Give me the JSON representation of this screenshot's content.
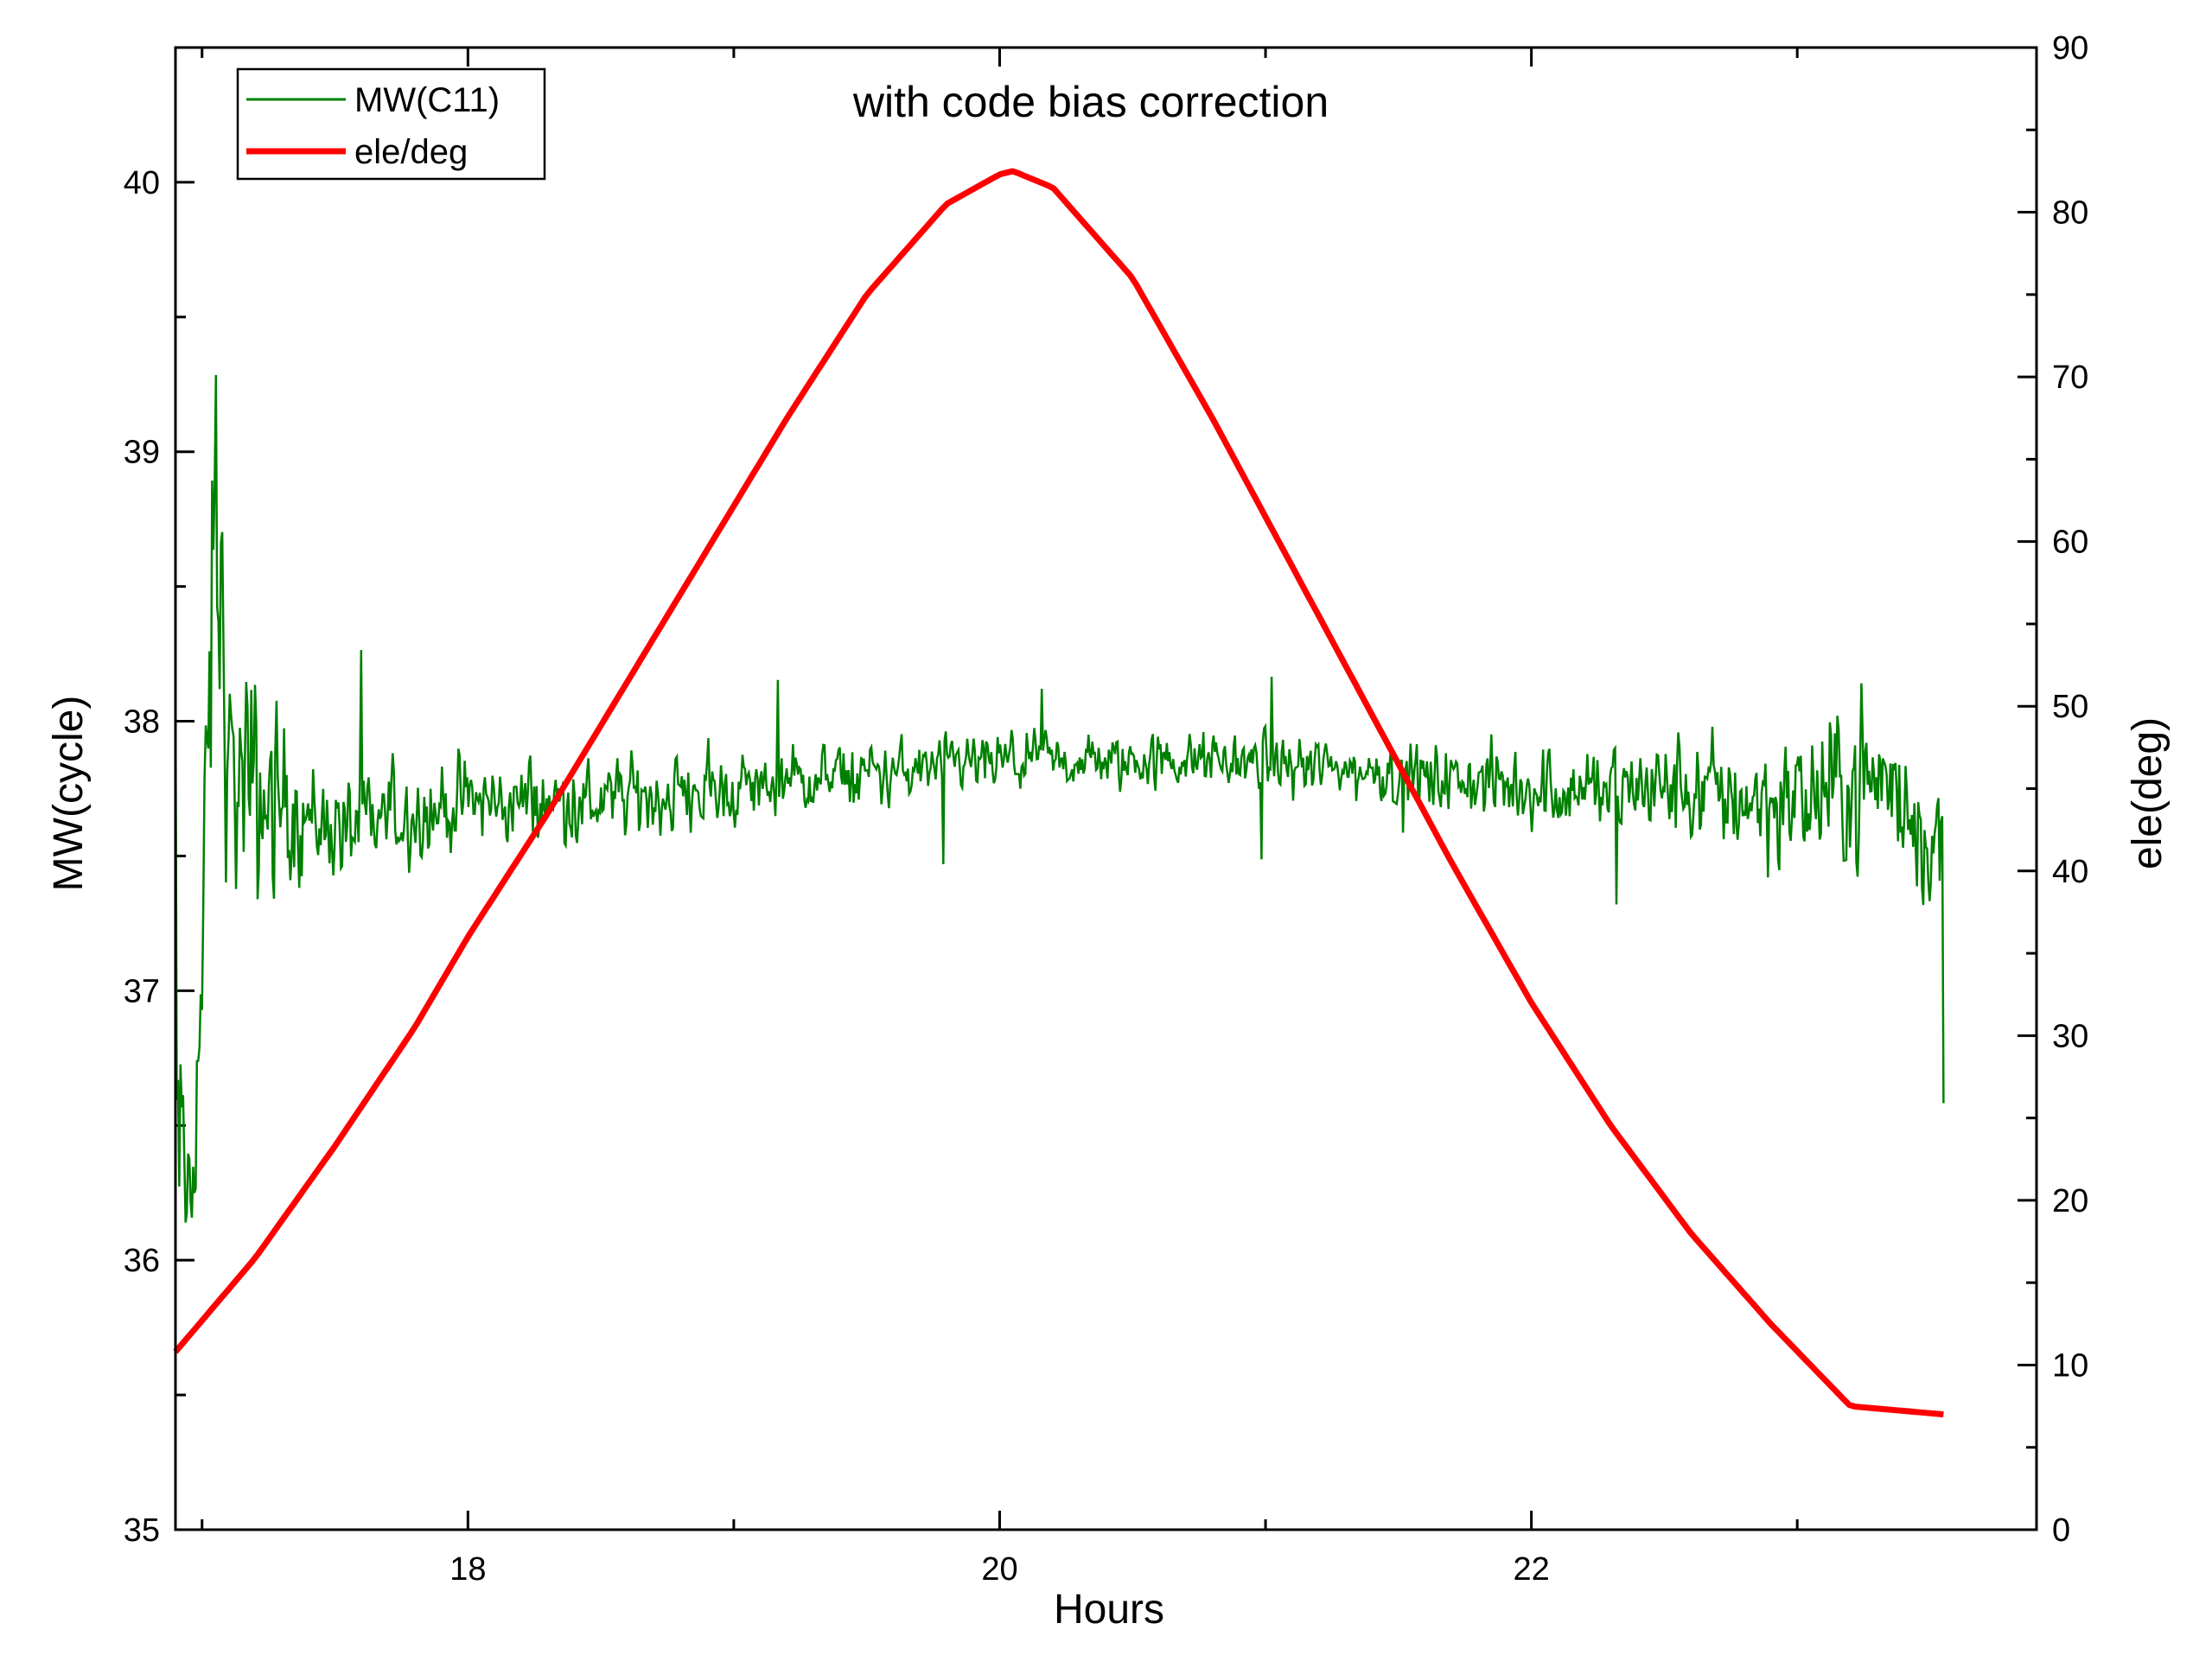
{
  "chart_data": {
    "type": "line",
    "title": "with code bias correction",
    "xlabel": "Hours",
    "ylabel_left": "MW(cycle)",
    "ylabel_right": "ele(deg)",
    "xlim": [
      16.9,
      23.9
    ],
    "ylim_left": [
      35,
      40.5
    ],
    "ylim_right": [
      0,
      90
    ],
    "x_ticks": [
      18,
      20,
      22
    ],
    "x_minor_ticks": [
      17,
      19,
      21,
      23
    ],
    "y_left_ticks": [
      35,
      36,
      37,
      38,
      39,
      40
    ],
    "y_right_ticks": [
      0,
      10,
      20,
      30,
      40,
      50,
      60,
      70,
      80,
      90
    ],
    "grid": false,
    "legend_position": "top-left",
    "series": [
      {
        "name": "MW(C11)",
        "axis": "left",
        "color": "#008000",
        "style": "thin-line",
        "x_range": [
          16.9,
          23.55
        ],
        "description_points": {
          "x": [
            16.9,
            16.95,
            17.0,
            17.05,
            17.1,
            17.2,
            17.3,
            17.5,
            18.0,
            18.5,
            19.0,
            19.5,
            20.0,
            20.5,
            21.0,
            21.5,
            22.0,
            22.5,
            23.0,
            23.3,
            23.55
          ],
          "mean": [
            36.5,
            36.2,
            37.0,
            38.8,
            37.8,
            37.7,
            37.7,
            37.6,
            37.7,
            37.7,
            37.75,
            37.8,
            37.85,
            37.85,
            37.85,
            37.8,
            37.75,
            37.75,
            37.7,
            37.8,
            37.5
          ],
          "amplitude": [
            1.0,
            0.8,
            0.9,
            1.6,
            0.8,
            0.9,
            0.6,
            0.35,
            0.3,
            0.28,
            0.25,
            0.22,
            0.2,
            0.2,
            0.2,
            0.22,
            0.28,
            0.35,
            0.5,
            0.6,
            0.5
          ]
        }
      },
      {
        "name": "ele/deg",
        "axis": "right",
        "color": "#ff0000",
        "style": "thick-line",
        "x": [
          16.9,
          17.2,
          17.5,
          17.8,
          18.0,
          18.3,
          18.6,
          18.9,
          19.2,
          19.5,
          19.8,
          20.0,
          20.05,
          20.2,
          20.5,
          20.8,
          21.1,
          21.4,
          21.7,
          22.0,
          22.3,
          22.6,
          22.9,
          23.2,
          23.55
        ],
        "values": [
          10.8,
          16.5,
          23.3,
          30.5,
          36.0,
          43.5,
          51.5,
          59.5,
          67.5,
          75.0,
          80.5,
          82.3,
          82.5,
          81.5,
          76.0,
          67.5,
          58.5,
          49.5,
          40.5,
          32.0,
          24.5,
          18.0,
          12.5,
          7.5,
          7.0
        ]
      }
    ]
  }
}
